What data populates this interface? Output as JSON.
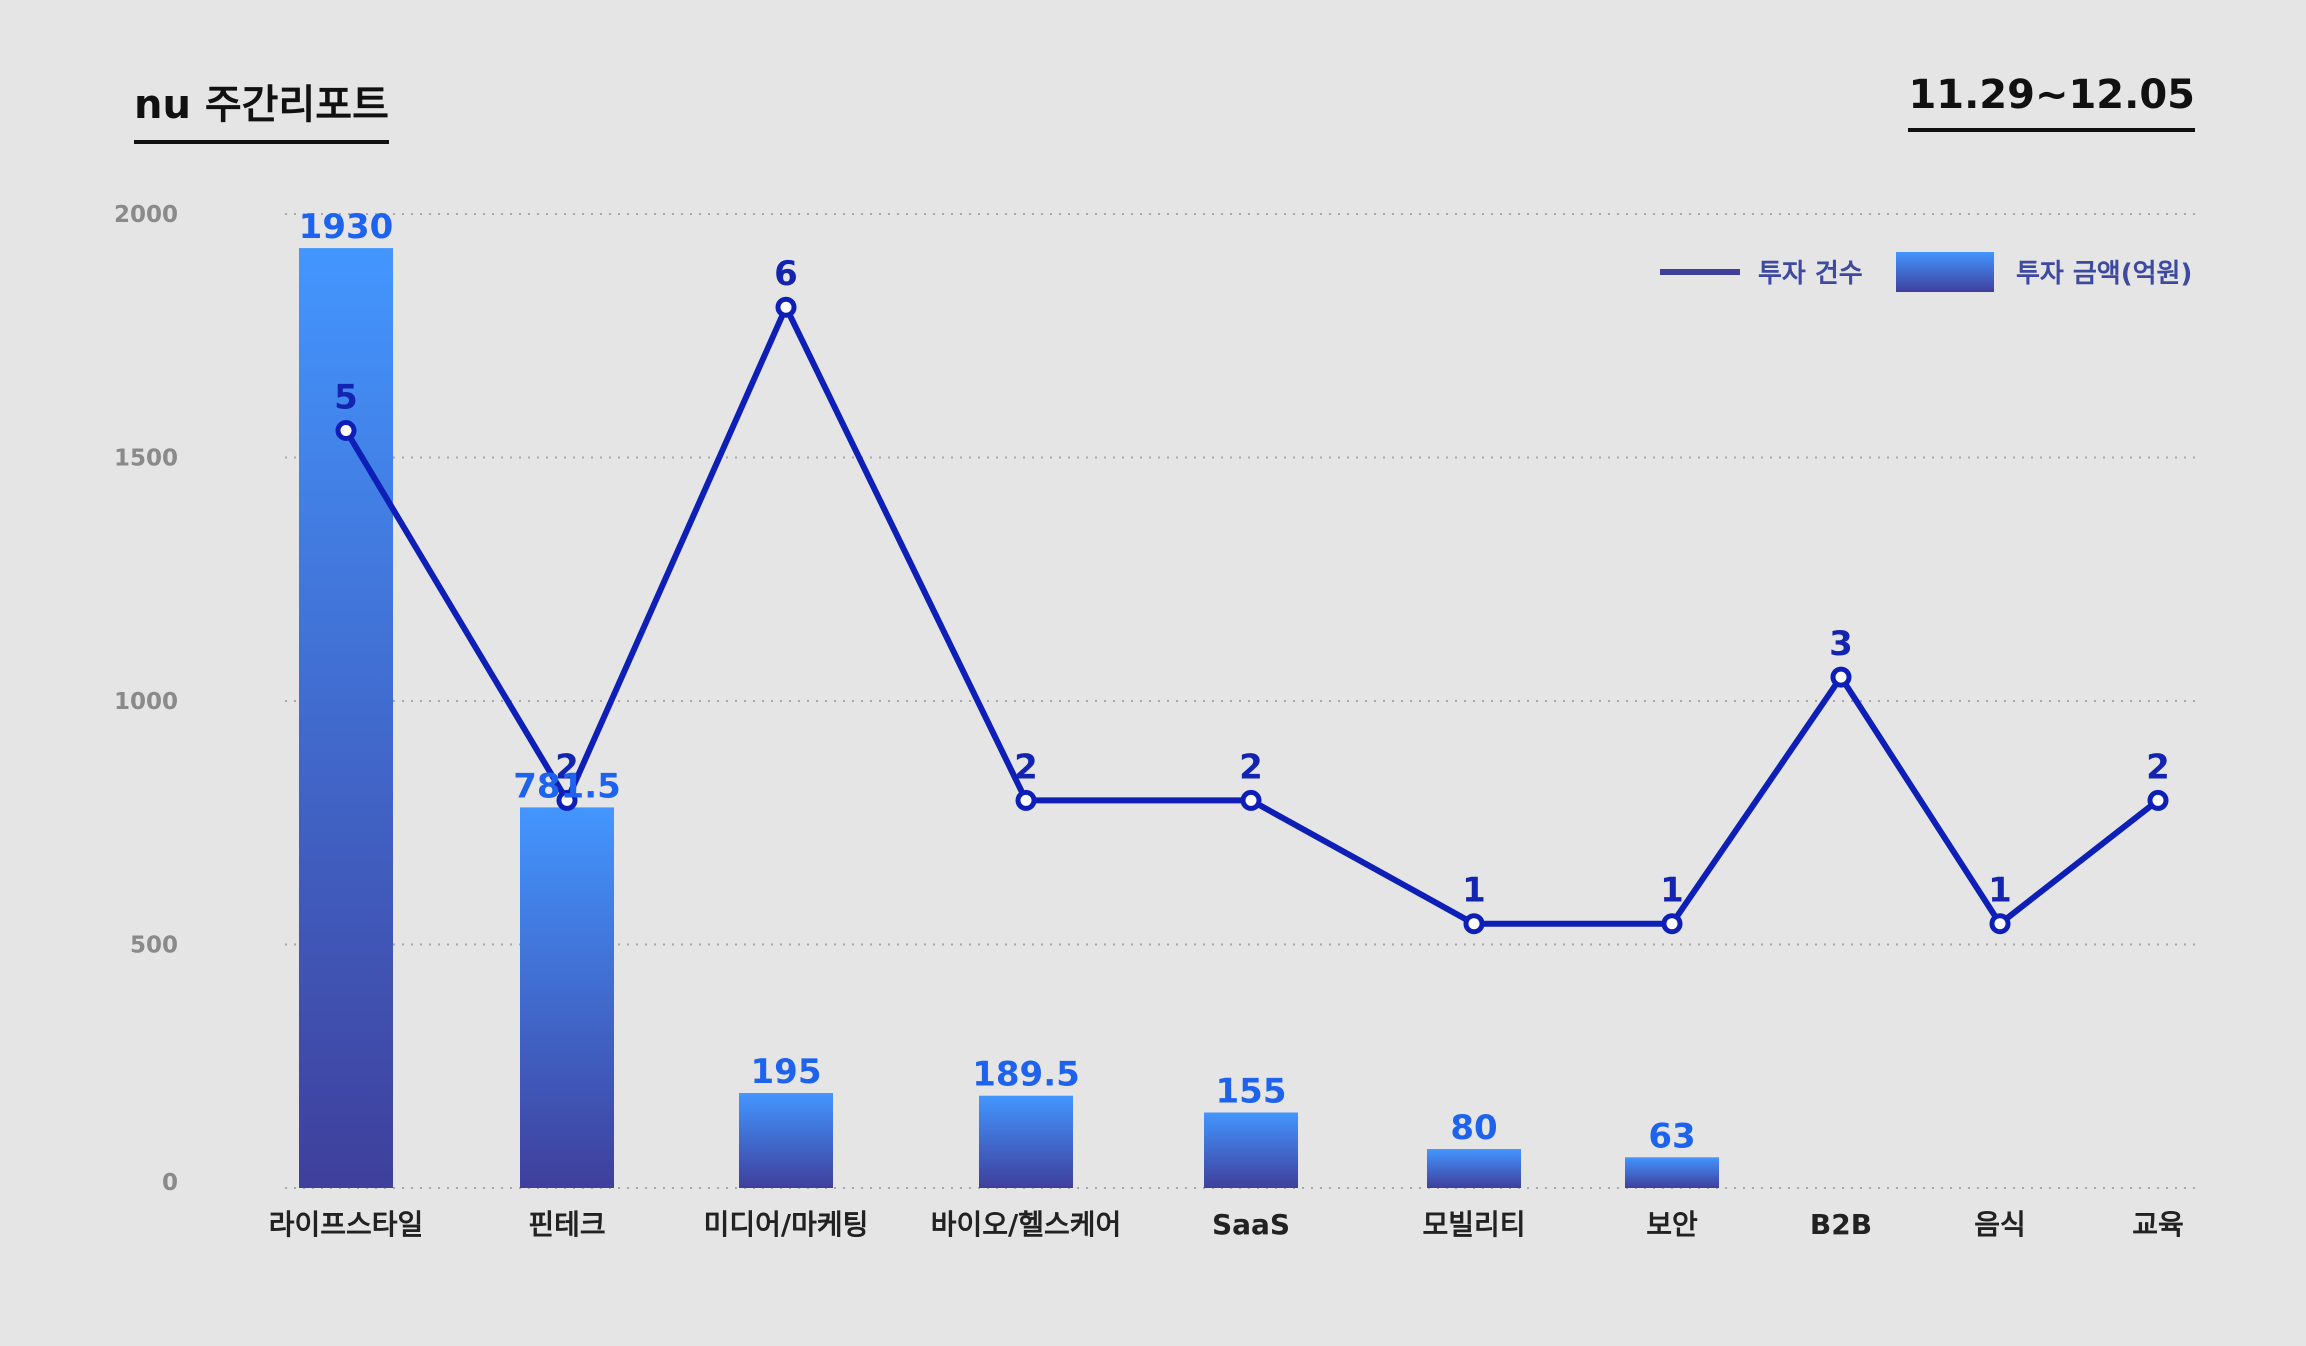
{
  "header": {
    "brand": "nu 주간리포트",
    "date_range": "11.29~12.05"
  },
  "legend": {
    "line_label": "투자 건수",
    "bar_label": "투자 금액(억원)"
  },
  "colors": {
    "bar_top": "#4396ff",
    "bar_bottom": "#3f3f9c",
    "line": "#0e1fb8",
    "bar_label": "#1e63ee",
    "background": "#e5e5e5"
  },
  "chart_data": {
    "type": "bar",
    "categories": [
      "라이프스타일",
      "핀테크",
      "미디어/마케팅",
      "바이오/헬스케어",
      "SaaS",
      "모빌리티",
      "보안",
      "B2B",
      "음식",
      "교육"
    ],
    "series": [
      {
        "name": "투자 금액(억원)",
        "type": "bar",
        "values": [
          1930,
          781.5,
          195,
          189.5,
          155,
          80,
          63,
          null,
          null,
          null
        ]
      },
      {
        "name": "투자 건수",
        "type": "line",
        "values": [
          5,
          2,
          6,
          2,
          2,
          1,
          1,
          3,
          1,
          2
        ]
      }
    ],
    "yticks": [
      0,
      500,
      1000,
      1500,
      2000
    ],
    "ylim": [
      0,
      2000
    ],
    "grid": true,
    "legend_position": "top-right"
  }
}
